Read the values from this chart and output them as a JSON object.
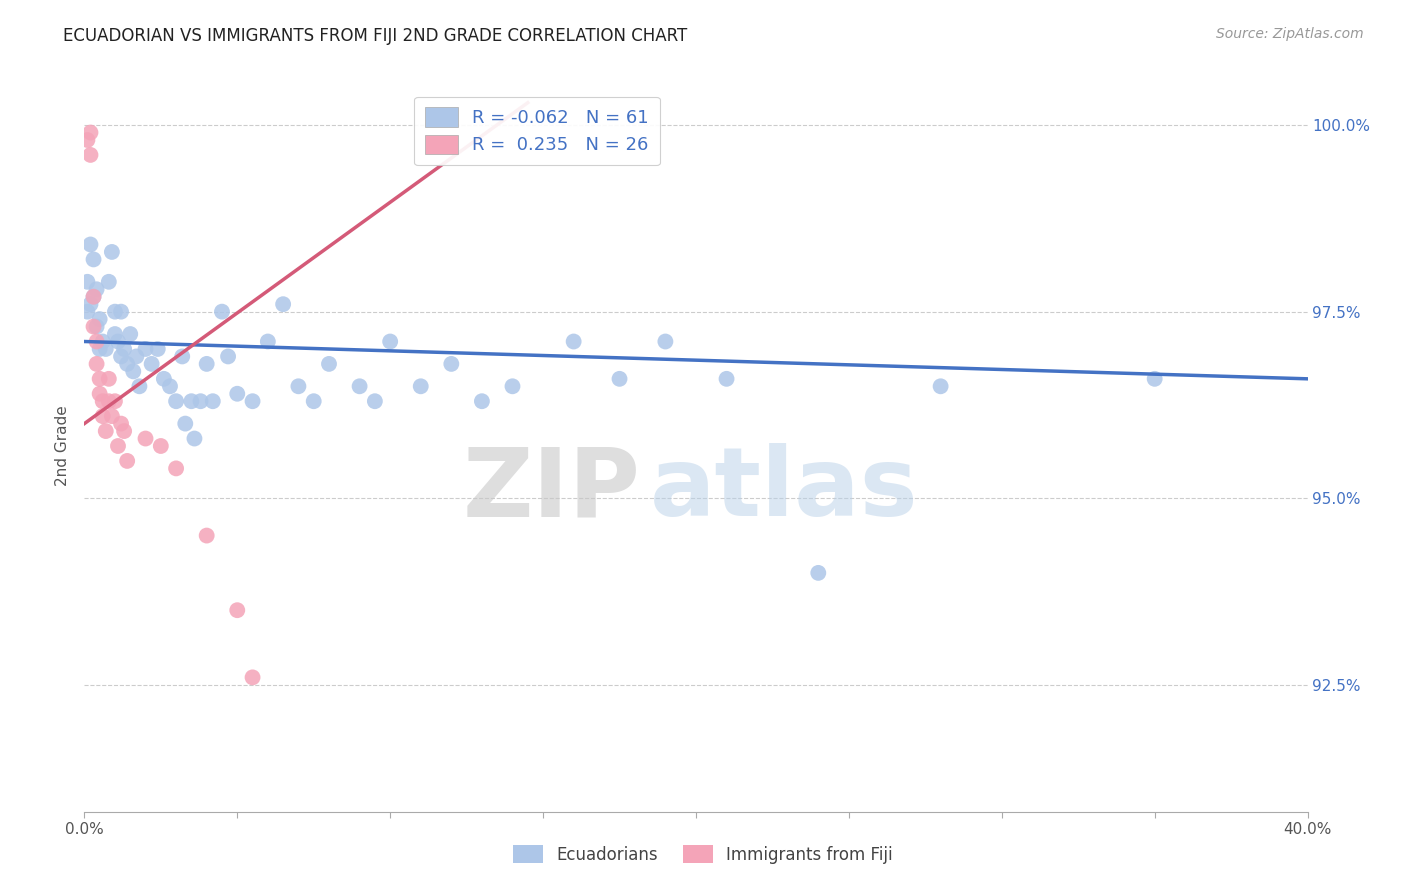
{
  "title": "ECUADORIAN VS IMMIGRANTS FROM FIJI 2ND GRADE CORRELATION CHART",
  "source": "Source: ZipAtlas.com",
  "ylabel": "2nd Grade",
  "x_min": 0.0,
  "x_max": 0.4,
  "y_min": 0.908,
  "y_max": 1.006,
  "y_ticks": [
    0.925,
    0.95,
    0.975,
    1.0
  ],
  "y_tick_labels": [
    "92.5%",
    "95.0%",
    "97.5%",
    "100.0%"
  ],
  "blue_color": "#adc6e8",
  "blue_line_color": "#4472c4",
  "pink_color": "#f4a4b8",
  "pink_line_color": "#d45a78",
  "blue_R": -0.062,
  "blue_N": 61,
  "pink_R": 0.235,
  "pink_N": 26,
  "ecuadorians_legend": "Ecuadorians",
  "fiji_legend": "Immigrants from Fiji",
  "watermark_zip": "ZIP",
  "watermark_atlas": "atlas",
  "blue_line_x0": 0.0,
  "blue_line_y0": 0.971,
  "blue_line_x1": 0.4,
  "blue_line_y1": 0.966,
  "pink_line_x0": 0.0,
  "pink_line_y0": 0.96,
  "pink_line_x1": 0.145,
  "pink_line_y1": 1.003,
  "blue_x": [
    0.001,
    0.001,
    0.002,
    0.002,
    0.003,
    0.003,
    0.004,
    0.004,
    0.005,
    0.005,
    0.006,
    0.007,
    0.008,
    0.009,
    0.01,
    0.01,
    0.011,
    0.012,
    0.012,
    0.013,
    0.014,
    0.015,
    0.016,
    0.017,
    0.018,
    0.02,
    0.022,
    0.024,
    0.026,
    0.028,
    0.03,
    0.032,
    0.033,
    0.035,
    0.036,
    0.038,
    0.04,
    0.042,
    0.045,
    0.047,
    0.05,
    0.055,
    0.06,
    0.065,
    0.07,
    0.075,
    0.08,
    0.09,
    0.095,
    0.1,
    0.11,
    0.12,
    0.13,
    0.14,
    0.16,
    0.175,
    0.19,
    0.21,
    0.24,
    0.28,
    0.35
  ],
  "blue_y": [
    0.979,
    0.975,
    0.984,
    0.976,
    0.977,
    0.982,
    0.978,
    0.973,
    0.97,
    0.974,
    0.971,
    0.97,
    0.979,
    0.983,
    0.975,
    0.972,
    0.971,
    0.975,
    0.969,
    0.97,
    0.968,
    0.972,
    0.967,
    0.969,
    0.965,
    0.97,
    0.968,
    0.97,
    0.966,
    0.965,
    0.963,
    0.969,
    0.96,
    0.963,
    0.958,
    0.963,
    0.968,
    0.963,
    0.975,
    0.969,
    0.964,
    0.963,
    0.971,
    0.976,
    0.965,
    0.963,
    0.968,
    0.965,
    0.963,
    0.971,
    0.965,
    0.968,
    0.963,
    0.965,
    0.971,
    0.966,
    0.971,
    0.966,
    0.94,
    0.965,
    0.966
  ],
  "pink_x": [
    0.001,
    0.002,
    0.002,
    0.003,
    0.003,
    0.004,
    0.004,
    0.005,
    0.005,
    0.006,
    0.006,
    0.007,
    0.008,
    0.008,
    0.009,
    0.01,
    0.011,
    0.012,
    0.013,
    0.014,
    0.02,
    0.025,
    0.03,
    0.04,
    0.05,
    0.055
  ],
  "pink_y": [
    0.998,
    0.999,
    0.996,
    0.977,
    0.973,
    0.971,
    0.968,
    0.966,
    0.964,
    0.963,
    0.961,
    0.959,
    0.966,
    0.963,
    0.961,
    0.963,
    0.957,
    0.96,
    0.959,
    0.955,
    0.958,
    0.957,
    0.954,
    0.945,
    0.935,
    0.926
  ]
}
